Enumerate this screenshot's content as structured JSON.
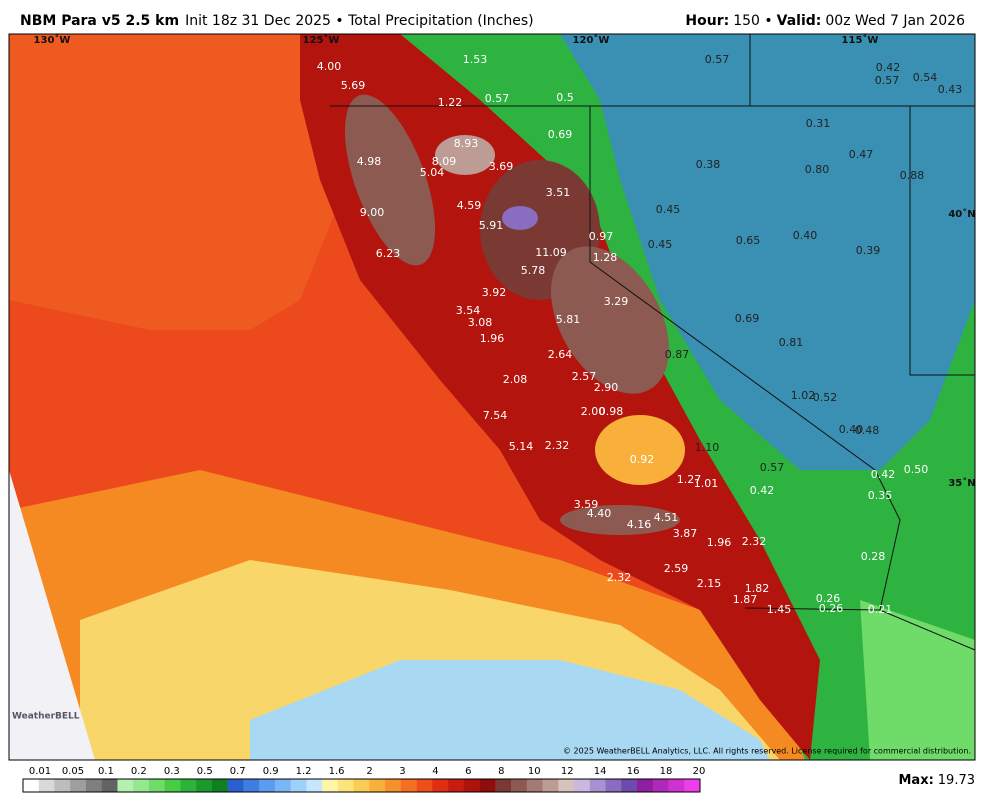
{
  "header": {
    "model": "NBM Para v5 2.5 km",
    "info": "Init 18z 31 Dec 2025 • Total Precipitation (Inches)",
    "hour_label": "Hour:",
    "hour": "150 •",
    "valid_label": "Valid:",
    "valid": "00z Wed 7 Jan 2026"
  },
  "map": {
    "graticule": [
      "130˚W",
      "125˚W",
      "120˚W",
      "115˚W",
      "40˚N",
      "35˚N"
    ],
    "labels": [
      "4.00",
      "1.53",
      "0.57",
      "0.42",
      "0.54",
      "0.57",
      "0.43",
      "5.69",
      "1.22",
      "0.57",
      "0.5",
      "0.69",
      "0.31",
      "8.93",
      "0.47",
      "4.98",
      "8.09",
      "5.04",
      "3.69",
      "0.38",
      "0.80",
      "0.88",
      "3.51",
      "4.59",
      "0.45",
      "9.00",
      "5.91",
      "0.97",
      "0.65",
      "0.40",
      "11.09",
      "0.45",
      "1.28",
      "0.39",
      "6.23",
      "5.78",
      "3.92",
      "3.29",
      "3.54",
      "3.08",
      "5.81",
      "0.69",
      "1.96",
      "0.81",
      "0.87",
      "2.64",
      "2.57",
      "2.08",
      "2.90",
      "1.02",
      "0.52",
      "2.00",
      "0.98",
      "7.54",
      "0.40",
      "0.48",
      "5.14",
      "2.32",
      "1.10",
      "0.92",
      "0.57",
      "0.42",
      "0.50",
      "1.27",
      "1.01",
      "0.42",
      "0.35",
      "3.59",
      "4.40",
      "4.51",
      "4.16",
      "3.87",
      "1.96",
      "2.32",
      "0.28",
      "2.32",
      "2.59",
      "2.15",
      "1.82",
      "1.87",
      "0.26",
      "0.26",
      "1.45",
      "0.21"
    ],
    "copyright": "© 2025 WeatherBELL Analytics, LLC. All rights reserved. License required for commercial distribution.",
    "logo": "WeatherBELL"
  },
  "legend": {
    "ticks": [
      "0.01",
      "0.05",
      "0.1",
      "0.2",
      "0.3",
      "0.5",
      "0.7",
      "0.9",
      "1.2",
      "1.6",
      "2",
      "3",
      "4",
      "6",
      "8",
      "10",
      "12",
      "14",
      "16",
      "18",
      "20"
    ],
    "colors": [
      "#ffffff",
      "#d9d9d9",
      "#bdbdbd",
      "#9e9e9e",
      "#7f7f7f",
      "#636363",
      "#b5f0b0",
      "#96e890",
      "#6fdc6a",
      "#4acb45",
      "#2eb33a",
      "#1a9a2c",
      "#0f7f22",
      "#2a5fd0",
      "#3d7fe0",
      "#5b9cf0",
      "#7ab6f6",
      "#9fd0fa",
      "#c5e6fd",
      "#fff6a8",
      "#fde37a",
      "#fbcc55",
      "#f9b03a",
      "#f7902a",
      "#f46f1f",
      "#ef4d1a",
      "#e02e13",
      "#c81c10",
      "#ad120c",
      "#8f0d0a",
      "#7a3a33",
      "#8d5a52",
      "#a47a72",
      "#bc9c95",
      "#d6c3be",
      "#c9b8e0",
      "#a791d0",
      "#8a6cc0",
      "#6f4aae",
      "#8e1f9e",
      "#b028b8",
      "#d032d2",
      "#ee3ded"
    ]
  },
  "footer": {
    "max_label": "Max:",
    "max": "19.73"
  }
}
